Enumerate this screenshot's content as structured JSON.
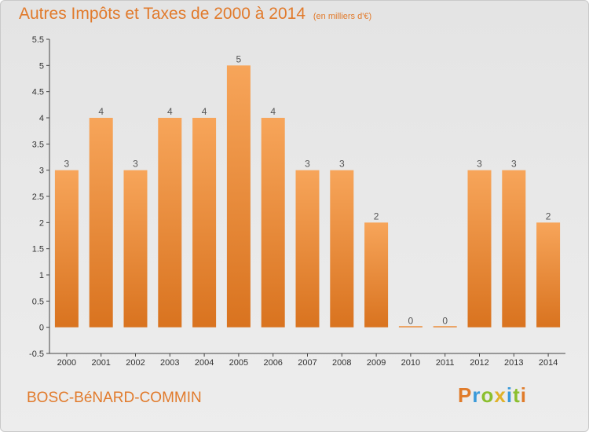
{
  "chart_data": {
    "type": "bar",
    "title": "Autres Impôts et Taxes de 2000 à 2014",
    "subtitle": "(en milliers d'€)",
    "categories": [
      "2000",
      "2001",
      "2002",
      "2003",
      "2004",
      "2005",
      "2006",
      "2007",
      "2008",
      "2009",
      "2010",
      "2011",
      "2012",
      "2013",
      "2014"
    ],
    "values": [
      3,
      4,
      3,
      4,
      4,
      5,
      4,
      3,
      3,
      2,
      0,
      0,
      3,
      3,
      2
    ],
    "data_labels": [
      "3",
      "4",
      "3",
      "4",
      "4",
      "5",
      "4",
      "3",
      "3",
      "2",
      "0",
      "0",
      "3",
      "3",
      "2"
    ],
    "y_ticks": [
      "-0.5",
      "0",
      "0.5",
      "1",
      "1.5",
      "2",
      "2.5",
      "3",
      "3.5",
      "4",
      "4.5",
      "5",
      "5.5"
    ],
    "ylim": [
      -0.5,
      5.5
    ],
    "grid": false,
    "legend": "none",
    "bar_color_top": "#f7a55a",
    "bar_color_bottom": "#d9731f"
  },
  "commune_name": "BOSC-BéNARD-COMMIN",
  "logo": {
    "letters": [
      "P",
      "r",
      "o",
      "x",
      "i",
      "t",
      "i"
    ],
    "colors": [
      "#e07b2a",
      "#3a9ad9",
      "#8bbf2e",
      "#e0b22a",
      "#3a9ad9",
      "#8bbf2e",
      "#e07b2a"
    ]
  }
}
